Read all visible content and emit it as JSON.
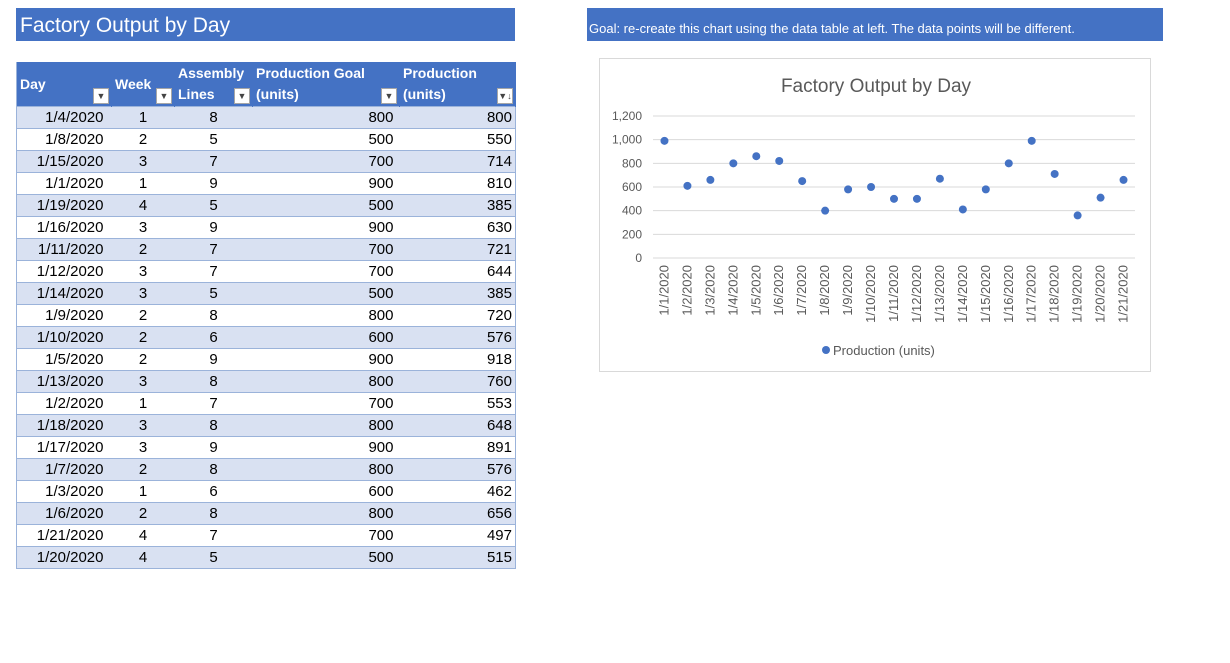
{
  "sheet": {
    "title": "Factory Output by Day",
    "goal_note": "Goal: re-create this chart using the data table at left. The data points will be different."
  },
  "table": {
    "columns": [
      {
        "line1": "Day",
        "line2": "",
        "sort_icon": "filter-dropdown-icon"
      },
      {
        "line1": "Week",
        "line2": "",
        "sort_icon": "filter-dropdown-icon"
      },
      {
        "line1": "Assembly",
        "line2": "Lines",
        "sort_icon": "filter-dropdown-icon"
      },
      {
        "line1": "Production Goal",
        "line2": "(units)",
        "sort_icon": "filter-dropdown-icon"
      },
      {
        "line1": "Production",
        "line2": "(units)",
        "sort_icon": "sort-descending-icon"
      }
    ],
    "rows": [
      [
        "1/4/2020",
        "1",
        "8",
        "800",
        "800"
      ],
      [
        "1/8/2020",
        "2",
        "5",
        "500",
        "550"
      ],
      [
        "1/15/2020",
        "3",
        "7",
        "700",
        "714"
      ],
      [
        "1/1/2020",
        "1",
        "9",
        "900",
        "810"
      ],
      [
        "1/19/2020",
        "4",
        "5",
        "500",
        "385"
      ],
      [
        "1/16/2020",
        "3",
        "9",
        "900",
        "630"
      ],
      [
        "1/11/2020",
        "2",
        "7",
        "700",
        "721"
      ],
      [
        "1/12/2020",
        "3",
        "7",
        "700",
        "644"
      ],
      [
        "1/14/2020",
        "3",
        "5",
        "500",
        "385"
      ],
      [
        "1/9/2020",
        "2",
        "8",
        "800",
        "720"
      ],
      [
        "1/10/2020",
        "2",
        "6",
        "600",
        "576"
      ],
      [
        "1/5/2020",
        "2",
        "9",
        "900",
        "918"
      ],
      [
        "1/13/2020",
        "3",
        "8",
        "800",
        "760"
      ],
      [
        "1/2/2020",
        "1",
        "7",
        "700",
        "553"
      ],
      [
        "1/18/2020",
        "3",
        "8",
        "800",
        "648"
      ],
      [
        "1/17/2020",
        "3",
        "9",
        "900",
        "891"
      ],
      [
        "1/7/2020",
        "2",
        "8",
        "800",
        "576"
      ],
      [
        "1/3/2020",
        "1",
        "6",
        "600",
        "462"
      ],
      [
        "1/6/2020",
        "2",
        "8",
        "800",
        "656"
      ],
      [
        "1/21/2020",
        "4",
        "7",
        "700",
        "497"
      ],
      [
        "1/20/2020",
        "4",
        "5",
        "500",
        "515"
      ]
    ]
  },
  "colors": {
    "accent": "#4472c4",
    "band": "#d9e1f2",
    "marker": "#4472c4",
    "gridline": "#d9d9d9"
  },
  "chart_data": {
    "type": "scatter",
    "title": "Factory Output by Day",
    "xlabel": "",
    "ylabel": "",
    "ylim": [
      0,
      1200
    ],
    "yticks": [
      0,
      200,
      400,
      600,
      800,
      1000,
      1200
    ],
    "ytick_labels": [
      "0",
      "200",
      "400",
      "600",
      "800",
      "1,000",
      "1,200"
    ],
    "grid": true,
    "legend_position": "bottom",
    "categories": [
      "1/1/2020",
      "1/2/2020",
      "1/3/2020",
      "1/4/2020",
      "1/5/2020",
      "1/6/2020",
      "1/7/2020",
      "1/8/2020",
      "1/9/2020",
      "1/10/2020",
      "1/11/2020",
      "1/12/2020",
      "1/13/2020",
      "1/14/2020",
      "1/15/2020",
      "1/16/2020",
      "1/17/2020",
      "1/18/2020",
      "1/19/2020",
      "1/20/2020",
      "1/21/2020"
    ],
    "series": [
      {
        "name": "Production (units)",
        "values": [
          990,
          610,
          660,
          800,
          860,
          820,
          650,
          400,
          580,
          600,
          500,
          500,
          670,
          410,
          580,
          800,
          990,
          710,
          360,
          510,
          660
        ]
      }
    ]
  }
}
